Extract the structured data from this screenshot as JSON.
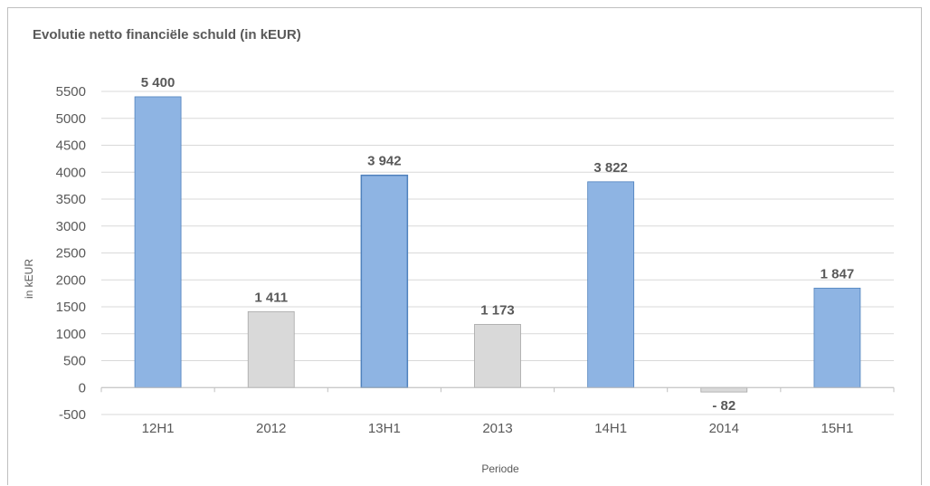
{
  "chart_data": {
    "type": "bar",
    "title": "Evolutie netto financiële schuld (in kEUR)",
    "xlabel": "Periode",
    "ylabel": "in kEUR",
    "categories": [
      "12H1",
      "2012",
      "13H1",
      "2013",
      "14H1",
      "2014",
      "15H1"
    ],
    "values": [
      5400,
      1411,
      3942,
      1173,
      3822,
      -82,
      1847
    ],
    "value_labels": [
      "5 400",
      "1 411",
      "3 942",
      "1 173",
      "3 822",
      "- 82",
      "1 847"
    ],
    "bar_colors": [
      "#8eb4e3",
      "#d9d9d9",
      "#8eb4e3",
      "#d9d9d9",
      "#8eb4e3",
      "#d9d9d9",
      "#8eb4e3"
    ],
    "ylim": [
      -500,
      5500
    ],
    "yticks": [
      "-500",
      "0",
      "500",
      "1000",
      "1500",
      "2000",
      "2500",
      "3000",
      "3500",
      "4000",
      "4500",
      "5000",
      "5500"
    ],
    "grid": true,
    "legend": "none"
  }
}
